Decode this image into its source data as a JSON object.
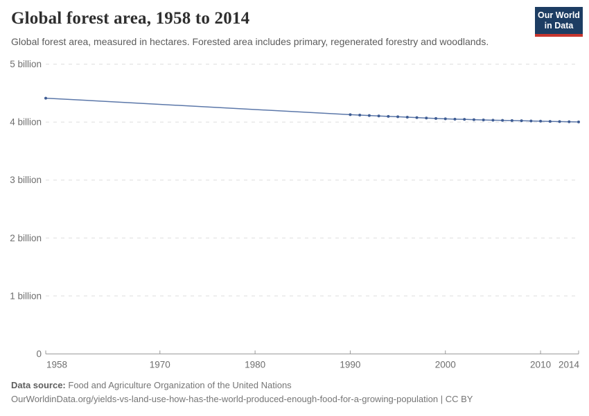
{
  "header": {
    "title": "Global forest area, 1958 to 2014",
    "subtitle": "Global forest area, measured in hectares. Forested area includes primary, regenerated forestry and woodlands.",
    "logo": {
      "line1": "Our World",
      "line2": "in Data",
      "bg_color": "#1d3d63",
      "accent_color": "#c8362e",
      "text_color": "#ffffff"
    }
  },
  "chart_data": {
    "type": "line",
    "title": "Global forest area, 1958 to 2014",
    "ylabel": "",
    "xlabel": "",
    "unit": "hectares (billions)",
    "xlim": [
      1958,
      2014
    ],
    "ylim": [
      0,
      5
    ],
    "grid": "horizontal dashed",
    "legend": "none",
    "colors": {
      "line": "#5b77a9",
      "point": "#3e5c93",
      "grid": "#dedede",
      "axis": "#999999",
      "tick_text": "#6e6e6e"
    },
    "y_ticks": [
      {
        "value": 0,
        "label": "0"
      },
      {
        "value": 1,
        "label": "1 billion"
      },
      {
        "value": 2,
        "label": "2 billion"
      },
      {
        "value": 3,
        "label": "3 billion"
      },
      {
        "value": 4,
        "label": "4 billion"
      },
      {
        "value": 5,
        "label": "5 billion"
      }
    ],
    "x_ticks": [
      {
        "value": 1958,
        "label": "1958"
      },
      {
        "value": 1970,
        "label": "1970"
      },
      {
        "value": 1980,
        "label": "1980"
      },
      {
        "value": 1990,
        "label": "1990"
      },
      {
        "value": 2000,
        "label": "2000"
      },
      {
        "value": 2010,
        "label": "2010"
      },
      {
        "value": 2014,
        "label": "2014"
      }
    ],
    "series": [
      {
        "name": "Global forest area",
        "points": [
          [
            1958,
            4.413
          ],
          [
            1990,
            4.128
          ],
          [
            1991,
            4.121
          ],
          [
            1992,
            4.114
          ],
          [
            1993,
            4.106
          ],
          [
            1994,
            4.099
          ],
          [
            1995,
            4.092
          ],
          [
            1996,
            4.085
          ],
          [
            1997,
            4.078
          ],
          [
            1998,
            4.07
          ],
          [
            1999,
            4.063
          ],
          [
            2000,
            4.056
          ],
          [
            2001,
            4.051
          ],
          [
            2002,
            4.047
          ],
          [
            2003,
            4.042
          ],
          [
            2004,
            4.037
          ],
          [
            2005,
            4.033
          ],
          [
            2006,
            4.029
          ],
          [
            2007,
            4.026
          ],
          [
            2008,
            4.023
          ],
          [
            2009,
            4.019
          ],
          [
            2010,
            4.016
          ],
          [
            2011,
            4.012
          ],
          [
            2012,
            4.009
          ],
          [
            2013,
            4.005
          ],
          [
            2014,
            4.002
          ]
        ]
      }
    ]
  },
  "footer": {
    "source_label": "Data source:",
    "source_text": "Food and Agriculture Organization of the United Nations",
    "url_text": "OurWorldinData.org/yields-vs-land-use-how-has-the-world-produced-enough-food-for-a-growing-population | CC BY"
  }
}
